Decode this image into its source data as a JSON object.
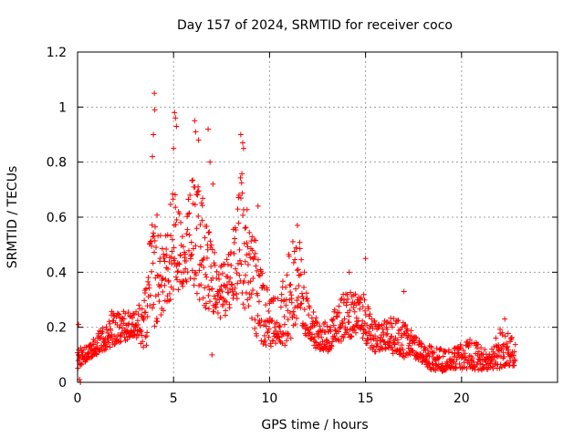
{
  "chart_data": {
    "type": "scatter",
    "title": "Day 157 of 2024, SRMTID for receiver coco",
    "xlabel": "GPS time / hours",
    "ylabel": "SRMTID / TECUs",
    "xlim": [
      0,
      25
    ],
    "ylim": [
      0,
      1.2
    ],
    "xticks": [
      "0",
      "5",
      "10",
      "15",
      "20"
    ],
    "yticks": [
      "0",
      "0.2",
      "0.4",
      "0.6",
      "0.8",
      "1",
      "1.2"
    ],
    "grid": true,
    "marker": "plus",
    "color": "#ff0000",
    "series": [
      {
        "name": "SRMTID",
        "envelope": {
          "x": [
            0.0,
            0.5,
            1.0,
            1.5,
            2.0,
            2.5,
            3.0,
            3.5,
            4.0,
            4.5,
            5.0,
            5.5,
            6.0,
            6.5,
            7.0,
            7.5,
            8.0,
            8.5,
            9.0,
            9.5,
            10.0,
            10.5,
            11.0,
            11.5,
            12.0,
            12.5,
            13.0,
            13.5,
            14.0,
            14.5,
            15.0,
            15.5,
            16.0,
            16.5,
            17.0,
            17.5,
            18.0,
            18.5,
            19.0,
            19.5,
            20.0,
            20.5,
            21.0,
            21.5,
            22.0,
            22.5,
            22.8
          ],
          "low": [
            0.05,
            0.08,
            0.1,
            0.12,
            0.14,
            0.15,
            0.17,
            0.12,
            0.2,
            0.26,
            0.32,
            0.35,
            0.32,
            0.28,
            0.25,
            0.22,
            0.28,
            0.3,
            0.22,
            0.14,
            0.12,
            0.15,
            0.12,
            0.25,
            0.14,
            0.12,
            0.11,
            0.14,
            0.15,
            0.18,
            0.14,
            0.11,
            0.12,
            0.1,
            0.09,
            0.09,
            0.07,
            0.04,
            0.04,
            0.05,
            0.05,
            0.05,
            0.04,
            0.05,
            0.05,
            0.06,
            0.06
          ],
          "high": [
            0.15,
            0.13,
            0.17,
            0.23,
            0.28,
            0.26,
            0.25,
            0.33,
            0.7,
            0.5,
            0.72,
            0.58,
            0.76,
            0.68,
            0.5,
            0.45,
            0.48,
            0.82,
            0.6,
            0.46,
            0.3,
            0.33,
            0.5,
            0.55,
            0.34,
            0.22,
            0.22,
            0.28,
            0.35,
            0.33,
            0.32,
            0.23,
            0.23,
            0.24,
            0.22,
            0.18,
            0.14,
            0.13,
            0.12,
            0.12,
            0.14,
            0.16,
            0.13,
            0.11,
            0.2,
            0.18,
            0.14
          ]
        },
        "spikes": [
          {
            "x": 0.05,
            "y": 0.21
          },
          {
            "x": 0.1,
            "y": 0.01
          },
          {
            "x": 0.15,
            "y": 0.0
          },
          {
            "x": 3.9,
            "y": 0.82
          },
          {
            "x": 3.95,
            "y": 0.9
          },
          {
            "x": 4.0,
            "y": 1.05
          },
          {
            "x": 4.02,
            "y": 0.99
          },
          {
            "x": 5.05,
            "y": 0.98
          },
          {
            "x": 5.1,
            "y": 0.96
          },
          {
            "x": 5.15,
            "y": 0.93
          },
          {
            "x": 5.0,
            "y": 0.85
          },
          {
            "x": 6.1,
            "y": 0.95
          },
          {
            "x": 6.15,
            "y": 0.91
          },
          {
            "x": 6.3,
            "y": 0.88
          },
          {
            "x": 6.8,
            "y": 0.92
          },
          {
            "x": 6.9,
            "y": 0.8
          },
          {
            "x": 7.05,
            "y": 0.72
          },
          {
            "x": 8.5,
            "y": 0.9
          },
          {
            "x": 8.6,
            "y": 0.87
          },
          {
            "x": 8.65,
            "y": 0.85
          },
          {
            "x": 9.4,
            "y": 0.64
          },
          {
            "x": 11.45,
            "y": 0.57
          },
          {
            "x": 14.15,
            "y": 0.4
          },
          {
            "x": 15.0,
            "y": 0.45
          },
          {
            "x": 17.0,
            "y": 0.33
          },
          {
            "x": 22.25,
            "y": 0.23
          },
          {
            "x": 7.0,
            "y": 0.1
          }
        ]
      }
    ]
  }
}
